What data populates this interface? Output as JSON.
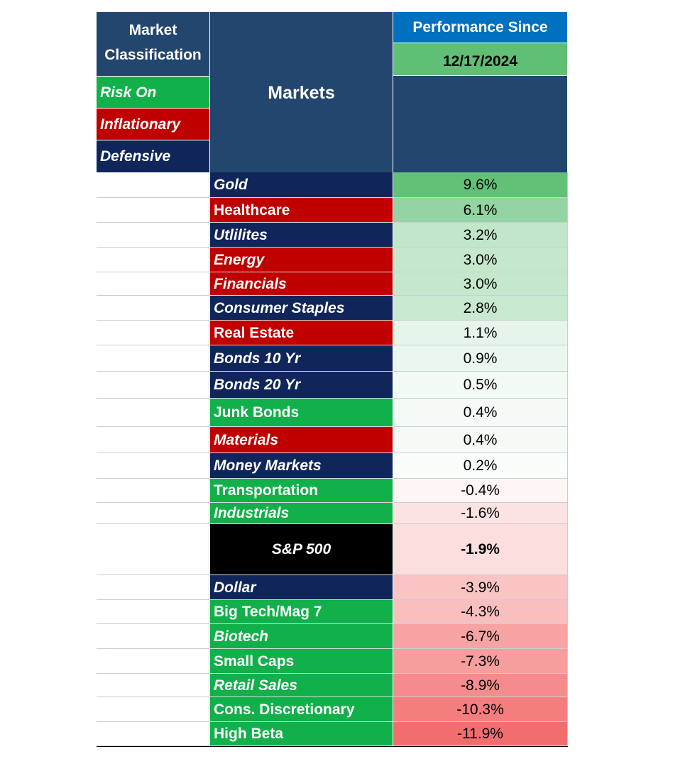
{
  "header": {
    "classification_line1": "Market",
    "classification_line2": "Classification",
    "markets": "Markets",
    "performance_since": "Performance Since",
    "date": "12/17/2024"
  },
  "legend": {
    "risk_on": "Risk On",
    "inflationary": "Inflationary",
    "defensive": "Defensive"
  },
  "colors": {
    "risk_on": "#12b04a",
    "inflationary": "#c00000",
    "defensive": "#10265a",
    "benchmark": "#000000",
    "header": "#23466f",
    "accent_blue": "#0070c0",
    "positive": "#5fbf74",
    "negative": "#f26b6b"
  },
  "rows": [
    {
      "market": "Gold",
      "perf": "9.6%",
      "value": 9.6,
      "class": "defensive",
      "italic": true
    },
    {
      "market": "Healthcare",
      "perf": "6.1%",
      "value": 6.1,
      "class": "inflationary",
      "italic": false
    },
    {
      "market": "Utlilites",
      "perf": "3.2%",
      "value": 3.2,
      "class": "defensive",
      "italic": true
    },
    {
      "market": "Energy",
      "perf": "3.0%",
      "value": 3.0,
      "class": "inflationary",
      "italic": true
    },
    {
      "market": "Financials",
      "perf": "3.0%",
      "value": 3.0,
      "class": "inflationary",
      "italic": true
    },
    {
      "market": "Consumer Staples",
      "perf": "2.8%",
      "value": 2.8,
      "class": "defensive",
      "italic": true
    },
    {
      "market": "Real Estate",
      "perf": "1.1%",
      "value": 1.1,
      "class": "inflationary",
      "italic": false
    },
    {
      "market": "Bonds 10 Yr",
      "perf": "0.9%",
      "value": 0.9,
      "class": "defensive",
      "italic": true
    },
    {
      "market": "Bonds 20 Yr",
      "perf": "0.5%",
      "value": 0.5,
      "class": "defensive",
      "italic": true
    },
    {
      "market": "Junk Bonds",
      "perf": "0.4%",
      "value": 0.4,
      "class": "risk_on",
      "italic": false
    },
    {
      "market": "Materials",
      "perf": "0.4%",
      "value": 0.4,
      "class": "inflationary",
      "italic": true
    },
    {
      "market": "Money Markets",
      "perf": "0.2%",
      "value": 0.2,
      "class": "defensive",
      "italic": true
    },
    {
      "market": "Transportation",
      "perf": "-0.4%",
      "value": -0.4,
      "class": "risk_on",
      "italic": false
    },
    {
      "market": "Industrials",
      "perf": "-1.6%",
      "value": -1.6,
      "class": "risk_on",
      "italic": true
    },
    {
      "market": "S&P 500",
      "perf": "-1.9%",
      "value": -1.9,
      "class": "benchmark",
      "italic": true,
      "bold_value": true
    },
    {
      "market": "Dollar",
      "perf": "-3.9%",
      "value": -3.9,
      "class": "defensive",
      "italic": true
    },
    {
      "market": "Big Tech/Mag 7",
      "perf": "-4.3%",
      "value": -4.3,
      "class": "risk_on",
      "italic": false
    },
    {
      "market": "Biotech",
      "perf": "-6.7%",
      "value": -6.7,
      "class": "risk_on",
      "italic": true
    },
    {
      "market": "Small Caps",
      "perf": "-7.3%",
      "value": -7.3,
      "class": "risk_on",
      "italic": false
    },
    {
      "market": "Retail Sales",
      "perf": "-8.9%",
      "value": -8.9,
      "class": "risk_on",
      "italic": true
    },
    {
      "market": "Cons. Discretionary",
      "perf": "-10.3%",
      "value": -10.3,
      "class": "risk_on",
      "italic": false
    },
    {
      "market": "High Beta",
      "perf": "-11.9%",
      "value": -11.9,
      "class": "risk_on",
      "italic": false
    }
  ]
}
